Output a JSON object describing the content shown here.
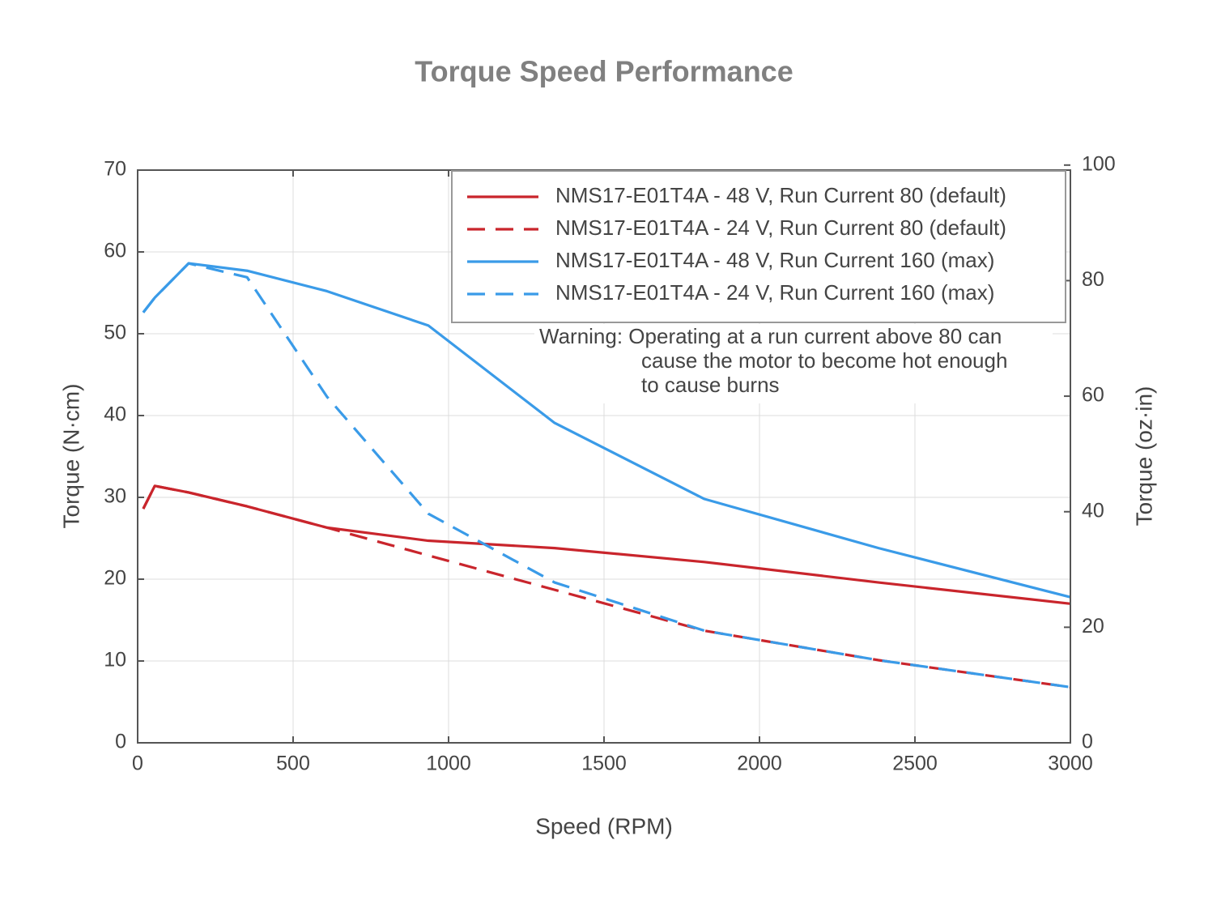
{
  "chart_data": {
    "type": "line",
    "title": "Torque Speed Performance",
    "x_label": "Speed (RPM)",
    "y_label": "Torque (N·cm)",
    "y2_label": "Torque (oz·in)",
    "xlim": [
      0,
      3000
    ],
    "xticks": [
      0,
      500,
      1000,
      1500,
      2000,
      2500,
      3000
    ],
    "ylim": [
      0,
      70
    ],
    "yticks": [
      0,
      10,
      20,
      30,
      40,
      50,
      60,
      70
    ],
    "y2lim": [
      0,
      99.13
    ],
    "y2ticks": [
      0,
      20,
      40,
      60,
      80,
      100
    ],
    "grid": true,
    "legend": "upper right",
    "series": [
      {
        "name": "NMS17-E01T4A - 48 V, Run Current 80 (default)",
        "color": "#c9252c",
        "dashed": false,
        "x": [
          18,
          55,
          164,
          352,
          609,
          935,
          1341,
          1823,
          2383,
          3000
        ],
        "values": [
          28.6,
          31.4,
          30.6,
          28.9,
          26.3,
          24.7,
          23.8,
          22.1,
          19.6,
          17.0
        ]
      },
      {
        "name": "NMS17-E01T4A - 24 V, Run Current 80 (default)",
        "color": "#c9252c",
        "dashed": true,
        "x": [
          18,
          55,
          164,
          352,
          609,
          935,
          1341,
          1823,
          2383,
          3000
        ],
        "values": [
          28.6,
          31.4,
          30.6,
          28.9,
          26.3,
          22.9,
          18.7,
          13.7,
          10.1,
          6.8
        ]
      },
      {
        "name": "NMS17-E01T4A - 48 V, Run Current 160 (max)",
        "color": "#3a9be8",
        "dashed": false,
        "x": [
          18,
          55,
          164,
          352,
          609,
          935,
          1341,
          1823,
          2383,
          3000
        ],
        "values": [
          52.6,
          54.4,
          58.6,
          57.7,
          55.2,
          51.0,
          39.1,
          29.8,
          23.8,
          17.8
        ]
      },
      {
        "name": "NMS17-E01T4A - 24 V, Run Current 160 (max)",
        "color": "#3a9be8",
        "dashed": true,
        "x": [
          18,
          55,
          164,
          352,
          609,
          935,
          1341,
          1823,
          2383,
          3000
        ],
        "values": [
          52.6,
          54.4,
          58.6,
          56.9,
          42.3,
          28.0,
          19.6,
          13.7,
          10.1,
          6.8
        ]
      }
    ],
    "annotation": [
      "Warning: Operating at a run current above 80 can",
      "cause the motor to become hot enough",
      "to cause burns"
    ]
  }
}
